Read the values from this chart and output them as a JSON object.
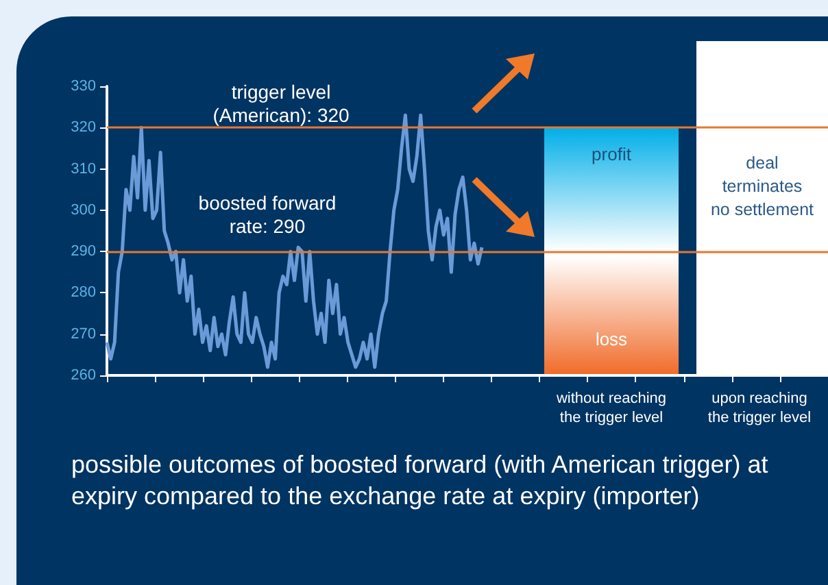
{
  "chart_data": {
    "type": "line",
    "categories": [
      null,
      null,
      null,
      null,
      null,
      null,
      null,
      null,
      null,
      null,
      null,
      null,
      null,
      null,
      null,
      null,
      null,
      null,
      null,
      null,
      null,
      null,
      null,
      null,
      null,
      null,
      null,
      null,
      null,
      null,
      null,
      null,
      null,
      null,
      null,
      null,
      null,
      null,
      null,
      null,
      null,
      null,
      null,
      null,
      null,
      null,
      null,
      null,
      null,
      null,
      null,
      null,
      null,
      null,
      null,
      null,
      null,
      null,
      null,
      null,
      null,
      null,
      null,
      null,
      null,
      null,
      null,
      null,
      null,
      null,
      null,
      null,
      null,
      null,
      null,
      null,
      null,
      null,
      null,
      null,
      null,
      null,
      null,
      null,
      null,
      null,
      null,
      null,
      null,
      null,
      null,
      null,
      null,
      null,
      null,
      null,
      null,
      null,
      null
    ],
    "series": [
      {
        "color": "#6a9bd8",
        "values": [
          268,
          264,
          268,
          285,
          290,
          305,
          300,
          313,
          303,
          320,
          300,
          312,
          298,
          300,
          314,
          295,
          292,
          288,
          290,
          280,
          288,
          278,
          284,
          270,
          276,
          268,
          272,
          266,
          274,
          267,
          270,
          265,
          273,
          279,
          270,
          268,
          280,
          270,
          268,
          274,
          270,
          267,
          262,
          268,
          264,
          280,
          284,
          282,
          290,
          283,
          291,
          290,
          278,
          290,
          278,
          270,
          275,
          268,
          283,
          275,
          282,
          270,
          274,
          268,
          265,
          262,
          264,
          268,
          264,
          270,
          262,
          270,
          275,
          278,
          290,
          300,
          305,
          315,
          323,
          310,
          307,
          313,
          323,
          310,
          295,
          288,
          296,
          300,
          294,
          298,
          285,
          299,
          305,
          308,
          300,
          288,
          292,
          287,
          291
        ]
      }
    ],
    "ylim": [
      260,
      330
    ],
    "yticks": [
      260,
      270,
      280,
      290,
      300,
      310,
      320,
      330
    ],
    "grid": false,
    "marker": "none",
    "line_style": "solid",
    "tick_labels": "y",
    "ref_lines": [
      {
        "axis": "y",
        "value": 320,
        "label": "trigger level\n(American): 320",
        "color": "#e8772e"
      },
      {
        "axis": "y",
        "value": 290,
        "label": "boosted forward\nrate: 290",
        "color": "#e8772e"
      }
    ],
    "annotations": [
      "profit",
      "loss",
      "deal\nterminates\nno settlement",
      "without reaching\nthe trigger level",
      "upon reaching\nthe trigger level",
      "possible outcomes of boosted forward (with American trigger) at expiry compared to the exchange rate at expiry (importer)"
    ]
  }
}
